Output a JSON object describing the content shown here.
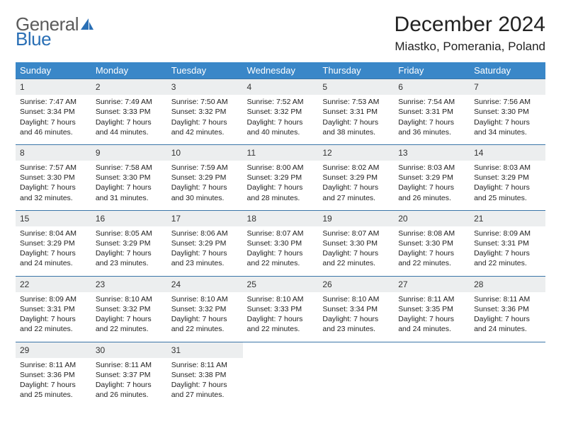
{
  "logo": {
    "text1": "General",
    "text2": "Blue"
  },
  "title": "December 2024",
  "location": "Miastko, Pomerania, Poland",
  "colors": {
    "header_bg": "#3a87c8",
    "header_text": "#ffffff",
    "daynum_bg": "#eceeef",
    "border": "#3a75a8",
    "logo_gray": "#5b5b5b",
    "logo_blue": "#2a6fb5"
  },
  "weekdays": [
    "Sunday",
    "Monday",
    "Tuesday",
    "Wednesday",
    "Thursday",
    "Friday",
    "Saturday"
  ],
  "weeks": [
    [
      {
        "n": "1",
        "sr": "Sunrise: 7:47 AM",
        "ss": "Sunset: 3:34 PM",
        "d1": "Daylight: 7 hours",
        "d2": "and 46 minutes."
      },
      {
        "n": "2",
        "sr": "Sunrise: 7:49 AM",
        "ss": "Sunset: 3:33 PM",
        "d1": "Daylight: 7 hours",
        "d2": "and 44 minutes."
      },
      {
        "n": "3",
        "sr": "Sunrise: 7:50 AM",
        "ss": "Sunset: 3:32 PM",
        "d1": "Daylight: 7 hours",
        "d2": "and 42 minutes."
      },
      {
        "n": "4",
        "sr": "Sunrise: 7:52 AM",
        "ss": "Sunset: 3:32 PM",
        "d1": "Daylight: 7 hours",
        "d2": "and 40 minutes."
      },
      {
        "n": "5",
        "sr": "Sunrise: 7:53 AM",
        "ss": "Sunset: 3:31 PM",
        "d1": "Daylight: 7 hours",
        "d2": "and 38 minutes."
      },
      {
        "n": "6",
        "sr": "Sunrise: 7:54 AM",
        "ss": "Sunset: 3:31 PM",
        "d1": "Daylight: 7 hours",
        "d2": "and 36 minutes."
      },
      {
        "n": "7",
        "sr": "Sunrise: 7:56 AM",
        "ss": "Sunset: 3:30 PM",
        "d1": "Daylight: 7 hours",
        "d2": "and 34 minutes."
      }
    ],
    [
      {
        "n": "8",
        "sr": "Sunrise: 7:57 AM",
        "ss": "Sunset: 3:30 PM",
        "d1": "Daylight: 7 hours",
        "d2": "and 32 minutes."
      },
      {
        "n": "9",
        "sr": "Sunrise: 7:58 AM",
        "ss": "Sunset: 3:30 PM",
        "d1": "Daylight: 7 hours",
        "d2": "and 31 minutes."
      },
      {
        "n": "10",
        "sr": "Sunrise: 7:59 AM",
        "ss": "Sunset: 3:29 PM",
        "d1": "Daylight: 7 hours",
        "d2": "and 30 minutes."
      },
      {
        "n": "11",
        "sr": "Sunrise: 8:00 AM",
        "ss": "Sunset: 3:29 PM",
        "d1": "Daylight: 7 hours",
        "d2": "and 28 minutes."
      },
      {
        "n": "12",
        "sr": "Sunrise: 8:02 AM",
        "ss": "Sunset: 3:29 PM",
        "d1": "Daylight: 7 hours",
        "d2": "and 27 minutes."
      },
      {
        "n": "13",
        "sr": "Sunrise: 8:03 AM",
        "ss": "Sunset: 3:29 PM",
        "d1": "Daylight: 7 hours",
        "d2": "and 26 minutes."
      },
      {
        "n": "14",
        "sr": "Sunrise: 8:03 AM",
        "ss": "Sunset: 3:29 PM",
        "d1": "Daylight: 7 hours",
        "d2": "and 25 minutes."
      }
    ],
    [
      {
        "n": "15",
        "sr": "Sunrise: 8:04 AM",
        "ss": "Sunset: 3:29 PM",
        "d1": "Daylight: 7 hours",
        "d2": "and 24 minutes."
      },
      {
        "n": "16",
        "sr": "Sunrise: 8:05 AM",
        "ss": "Sunset: 3:29 PM",
        "d1": "Daylight: 7 hours",
        "d2": "and 23 minutes."
      },
      {
        "n": "17",
        "sr": "Sunrise: 8:06 AM",
        "ss": "Sunset: 3:29 PM",
        "d1": "Daylight: 7 hours",
        "d2": "and 23 minutes."
      },
      {
        "n": "18",
        "sr": "Sunrise: 8:07 AM",
        "ss": "Sunset: 3:30 PM",
        "d1": "Daylight: 7 hours",
        "d2": "and 22 minutes."
      },
      {
        "n": "19",
        "sr": "Sunrise: 8:07 AM",
        "ss": "Sunset: 3:30 PM",
        "d1": "Daylight: 7 hours",
        "d2": "and 22 minutes."
      },
      {
        "n": "20",
        "sr": "Sunrise: 8:08 AM",
        "ss": "Sunset: 3:30 PM",
        "d1": "Daylight: 7 hours",
        "d2": "and 22 minutes."
      },
      {
        "n": "21",
        "sr": "Sunrise: 8:09 AM",
        "ss": "Sunset: 3:31 PM",
        "d1": "Daylight: 7 hours",
        "d2": "and 22 minutes."
      }
    ],
    [
      {
        "n": "22",
        "sr": "Sunrise: 8:09 AM",
        "ss": "Sunset: 3:31 PM",
        "d1": "Daylight: 7 hours",
        "d2": "and 22 minutes."
      },
      {
        "n": "23",
        "sr": "Sunrise: 8:10 AM",
        "ss": "Sunset: 3:32 PM",
        "d1": "Daylight: 7 hours",
        "d2": "and 22 minutes."
      },
      {
        "n": "24",
        "sr": "Sunrise: 8:10 AM",
        "ss": "Sunset: 3:32 PM",
        "d1": "Daylight: 7 hours",
        "d2": "and 22 minutes."
      },
      {
        "n": "25",
        "sr": "Sunrise: 8:10 AM",
        "ss": "Sunset: 3:33 PM",
        "d1": "Daylight: 7 hours",
        "d2": "and 22 minutes."
      },
      {
        "n": "26",
        "sr": "Sunrise: 8:10 AM",
        "ss": "Sunset: 3:34 PM",
        "d1": "Daylight: 7 hours",
        "d2": "and 23 minutes."
      },
      {
        "n": "27",
        "sr": "Sunrise: 8:11 AM",
        "ss": "Sunset: 3:35 PM",
        "d1": "Daylight: 7 hours",
        "d2": "and 24 minutes."
      },
      {
        "n": "28",
        "sr": "Sunrise: 8:11 AM",
        "ss": "Sunset: 3:36 PM",
        "d1": "Daylight: 7 hours",
        "d2": "and 24 minutes."
      }
    ],
    [
      {
        "n": "29",
        "sr": "Sunrise: 8:11 AM",
        "ss": "Sunset: 3:36 PM",
        "d1": "Daylight: 7 hours",
        "d2": "and 25 minutes."
      },
      {
        "n": "30",
        "sr": "Sunrise: 8:11 AM",
        "ss": "Sunset: 3:37 PM",
        "d1": "Daylight: 7 hours",
        "d2": "and 26 minutes."
      },
      {
        "n": "31",
        "sr": "Sunrise: 8:11 AM",
        "ss": "Sunset: 3:38 PM",
        "d1": "Daylight: 7 hours",
        "d2": "and 27 minutes."
      },
      null,
      null,
      null,
      null
    ]
  ]
}
